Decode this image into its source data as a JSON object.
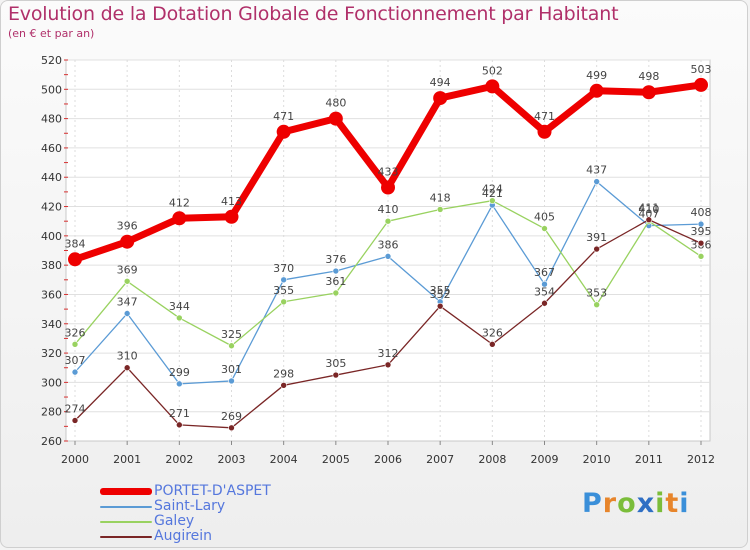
{
  "header": {
    "title": "Evolution de la Dotation Globale de Fonctionnement par Habitant",
    "subtitle": "(en € et par an)"
  },
  "brand": {
    "letters": [
      "P",
      "r",
      "o",
      "x",
      "i",
      "t",
      "i"
    ],
    "colors": [
      "c1",
      "c2",
      "c3",
      "c4",
      "c3",
      "c2",
      "c1"
    ]
  },
  "chart_data": {
    "type": "line",
    "title": "Evolution de la Dotation Globale de Fonctionnement par Habitant",
    "subtitle": "(en € et par an)",
    "xlabel": "",
    "ylabel": "",
    "ylim": [
      260,
      520
    ],
    "yticks": [
      260,
      280,
      300,
      320,
      340,
      360,
      380,
      400,
      420,
      440,
      460,
      480,
      500,
      520
    ],
    "categories": [
      "2000",
      "2001",
      "2002",
      "2003",
      "2004",
      "2005",
      "2006",
      "2007",
      "2008",
      "2009",
      "2010",
      "2011",
      "2012"
    ],
    "grid": true,
    "legend_position": "bottom-left",
    "series": [
      {
        "name": "PORTET-D'ASPET",
        "color": "#ee0000",
        "emphasis": true,
        "values": [
          384,
          396,
          412,
          413,
          471,
          480,
          433,
          494,
          502,
          471,
          499,
          498,
          503
        ]
      },
      {
        "name": "Saint-Lary",
        "color": "#5b9bd5",
        "emphasis": false,
        "values": [
          307,
          347,
          299,
          301,
          370,
          376,
          386,
          355,
          421,
          367,
          437,
          407,
          408
        ]
      },
      {
        "name": "Galey",
        "color": "#99d260",
        "emphasis": false,
        "values": [
          326,
          369,
          344,
          325,
          355,
          361,
          410,
          418,
          424,
          405,
          353,
          410,
          386
        ]
      },
      {
        "name": "Augirein",
        "color": "#7a2626",
        "emphasis": false,
        "values": [
          274,
          310,
          271,
          269,
          298,
          305,
          312,
          352,
          326,
          354,
          391,
          411,
          395
        ]
      }
    ]
  }
}
